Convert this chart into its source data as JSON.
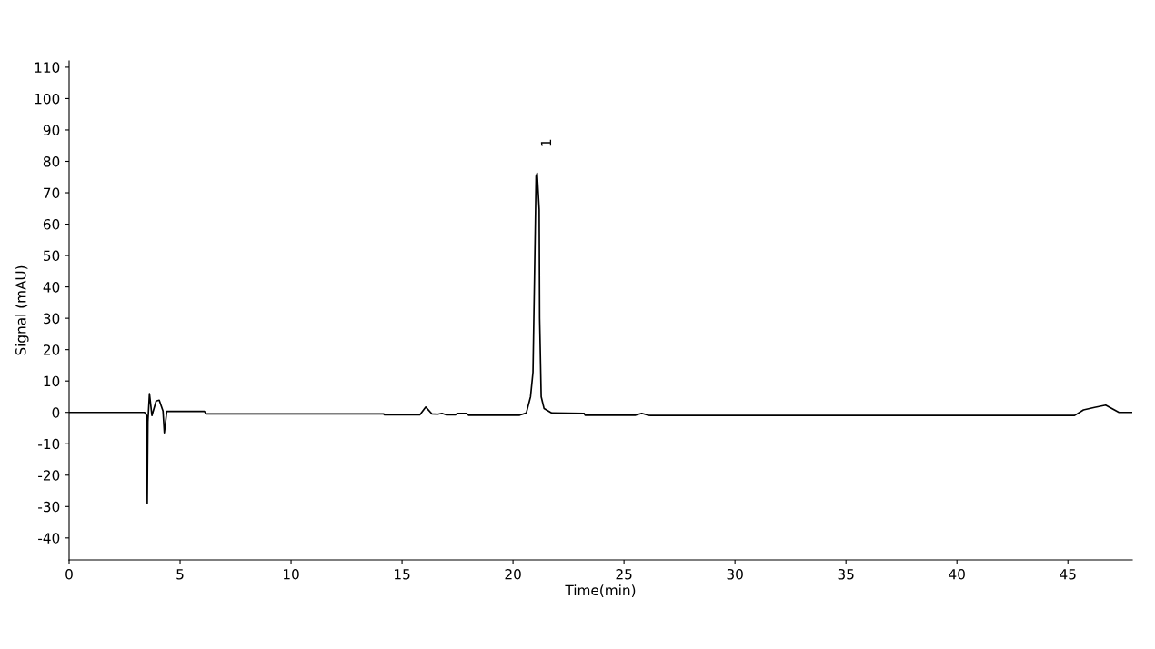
{
  "chart_data": {
    "type": "line",
    "xlabel": "Time(min)",
    "ylabel": "Signal (mAU)",
    "xlim": [
      0,
      47.9
    ],
    "ylim": [
      -47,
      112
    ],
    "xticks": [
      0,
      5,
      10,
      15,
      20,
      25,
      30,
      35,
      40,
      45
    ],
    "yticks": [
      -40,
      -30,
      -20,
      -10,
      0,
      10,
      20,
      30,
      40,
      50,
      60,
      70,
      80,
      90,
      100,
      110
    ],
    "grid": false,
    "legend": false,
    "marker": "none",
    "line_style": "solid",
    "annotations": [
      "1"
    ],
    "series": [
      {
        "color": "#000000",
        "x": [
          0,
          3.4,
          3.5,
          3.52,
          3.55,
          3.62,
          3.73,
          3.92,
          4.06,
          4.23,
          4.29,
          4.4,
          6.1,
          6.17,
          14.18,
          14.2,
          15.8,
          16.07,
          16.35,
          16.6,
          16.8,
          17.0,
          17.4,
          17.5,
          17.9,
          18.0,
          20.3,
          20.6,
          20.79,
          20.9,
          20.97,
          21.04,
          21.09,
          21.18,
          21.2,
          21.27,
          21.4,
          21.75,
          23.2,
          23.25,
          25.5,
          25.8,
          26.1,
          26.2,
          45.3,
          45.7,
          46.2,
          46.7,
          47.3,
          47.9
        ],
        "values": [
          0,
          0,
          -1,
          -29,
          -3,
          6,
          -1,
          3.6,
          3.9,
          0.4,
          -6.5,
          0.3,
          0.3,
          -0.5,
          -0.5,
          -0.8,
          -0.8,
          1.7,
          -0.5,
          -0.6,
          -0.3,
          -0.8,
          -0.8,
          -0.3,
          -0.3,
          -0.9,
          -0.9,
          -0.2,
          5,
          12.8,
          43.6,
          75.3,
          76.2,
          64.7,
          30,
          5,
          1.2,
          -0.2,
          -0.3,
          -0.9,
          -0.9,
          -0.3,
          -0.9,
          -1,
          -1,
          0.8,
          1.6,
          2.3,
          0,
          0
        ]
      }
    ]
  }
}
